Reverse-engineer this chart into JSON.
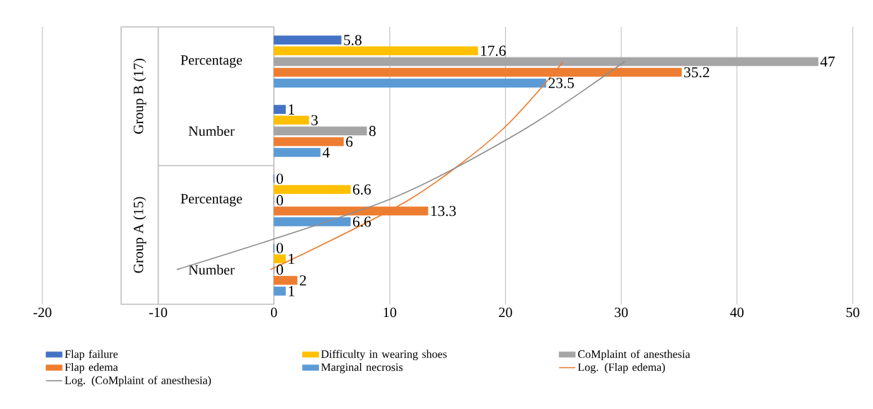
{
  "chart_data": {
    "type": "bar",
    "orientation": "horizontal",
    "categories": [
      "Percentage",
      "Number",
      "Percentage",
      "Number"
    ],
    "annotations": [
      "Group B (17)",
      "Group A (15)"
    ],
    "series": [
      {
        "name": "Flap failure",
        "color": "#4472c4",
        "values": [
          5.8,
          1,
          0,
          0
        ],
        "value_labels": [
          "5.8",
          "1",
          "0",
          "0"
        ]
      },
      {
        "name": "Difficulty in wearing shoes",
        "color": "#ffc000",
        "values": [
          17.6,
          3,
          6.6,
          1
        ],
        "value_labels": [
          "17.6",
          "3",
          "6.6",
          "1"
        ]
      },
      {
        "name": "CoMplaint of anesthesia",
        "color": "#a5a5a5",
        "values": [
          47,
          8,
          0,
          0
        ],
        "value_labels": [
          "47",
          "8",
          "0",
          "0"
        ]
      },
      {
        "name": "Flap edema",
        "color": "#ed7d31",
        "values": [
          35.2,
          6,
          13.3,
          2
        ],
        "value_labels": [
          "35.2",
          "6",
          "13.3",
          "2"
        ]
      },
      {
        "name": "Marginal necrosis",
        "color": "#5b9bd5",
        "values": [
          23.5,
          4,
          6.6,
          1
        ],
        "value_labels": [
          "23.5",
          "4",
          "6.6",
          "1"
        ]
      },
      {
        "name": "Log. (Flap edema)",
        "type": "line",
        "color": "#ed7d31",
        "values": [
          25.0,
          19.6,
          11.6,
          -0.3
        ]
      },
      {
        "name": "Log. (CoMplaint of anesthesia)",
        "type": "line",
        "color": "#8f8f8f",
        "values": [
          30.3,
          21.4,
          9.8,
          -8.4
        ]
      }
    ],
    "xlim": [
      -20,
      50
    ],
    "xticks": [
      -20,
      -10,
      0,
      10,
      20,
      30,
      40,
      50
    ],
    "grid": "x",
    "legend": "bottom"
  }
}
